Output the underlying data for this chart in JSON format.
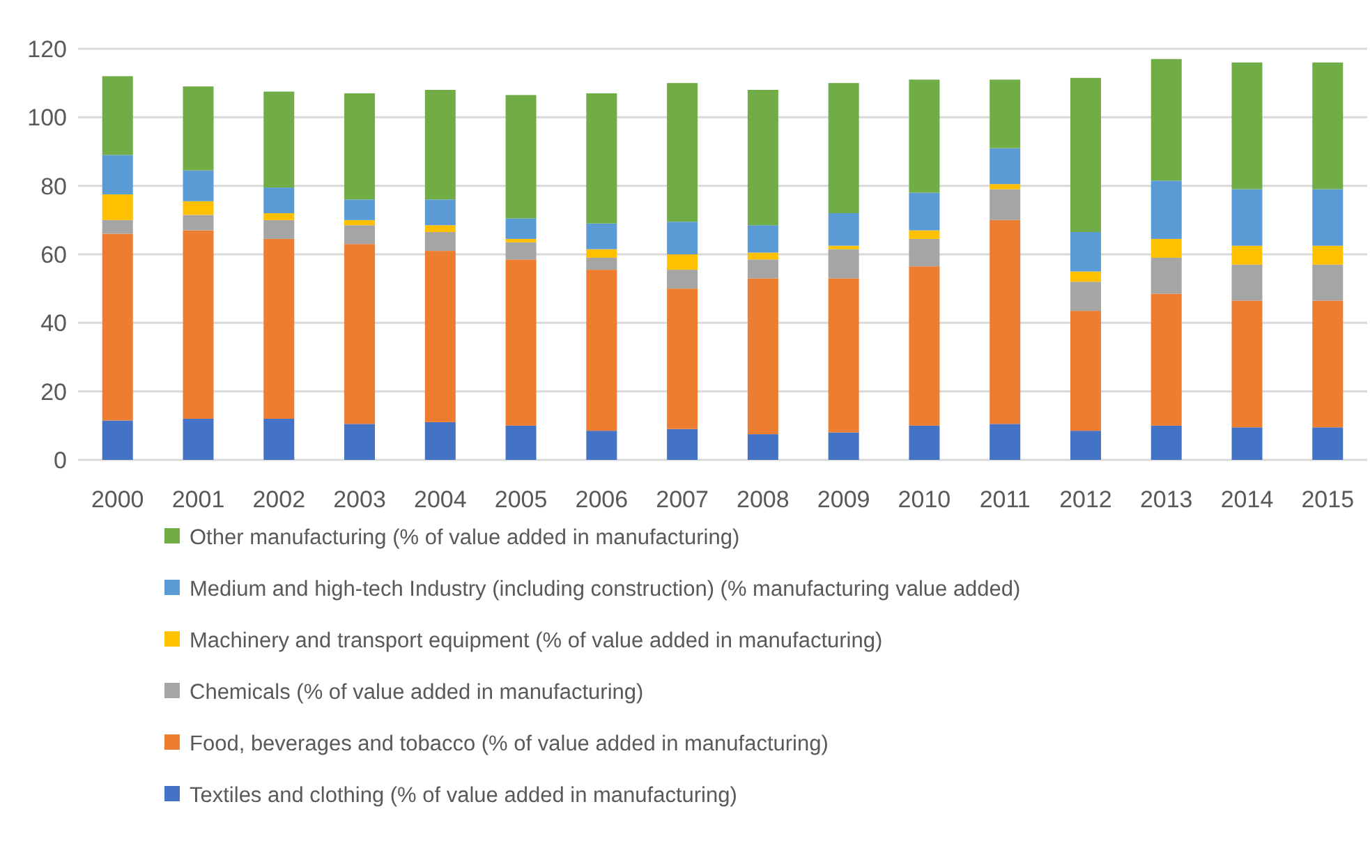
{
  "chart_data": {
    "type": "bar",
    "stacked": true,
    "categories": [
      "2000",
      "2001",
      "2002",
      "2003",
      "2004",
      "2005",
      "2006",
      "2007",
      "2008",
      "2009",
      "2010",
      "2011",
      "2012",
      "2013",
      "2014",
      "2015"
    ],
    "ylim": [
      0,
      120
    ],
    "yticks": [
      0,
      20,
      40,
      60,
      80,
      100,
      120
    ],
    "grid": "y",
    "legend": "bottom",
    "series": [
      {
        "name": "Textiles and clothing (% of value added in manufacturing)",
        "color": "#4472c4",
        "values": [
          11.5,
          12,
          12,
          10.5,
          11,
          10,
          8.5,
          9,
          7.5,
          8,
          10,
          10.5,
          8.5,
          10,
          9.5,
          9.5
        ]
      },
      {
        "name": "Food, beverages and tobacco (% of value added in manufacturing)",
        "color": "#ed7d31",
        "values": [
          54.5,
          55,
          52.5,
          52.5,
          50,
          48.5,
          47,
          41,
          45.5,
          45,
          46.5,
          59.5,
          35,
          38.5,
          37,
          37
        ]
      },
      {
        "name": "Chemicals (% of value added in manufacturing)",
        "color": "#a5a5a5",
        "values": [
          4,
          4.5,
          5.5,
          5.5,
          5.5,
          5,
          3.5,
          5.5,
          5.5,
          8.5,
          8,
          9,
          8.5,
          10.5,
          10.5,
          10.5
        ]
      },
      {
        "name": "Machinery and transport equipment (% of value added in manufacturing)",
        "color": "#ffc000",
        "values": [
          7.5,
          4,
          2,
          1.5,
          2,
          1,
          2.5,
          4.5,
          2,
          1,
          2.5,
          1.5,
          3,
          5.5,
          5.5,
          5.5
        ]
      },
      {
        "name": "Medium and high-tech Industry (including construction) (% manufacturing value added)",
        "color": "#5b9bd5",
        "values": [
          11.5,
          9,
          7.5,
          6,
          7.5,
          6,
          7.5,
          9.5,
          8,
          9.5,
          11,
          10.5,
          11.5,
          17,
          16.5,
          16.5
        ]
      },
      {
        "name": "Other manufacturing (% of value added in manufacturing)",
        "color": "#70ad47",
        "values": [
          23,
          24.5,
          28,
          31,
          32,
          36,
          38,
          40.5,
          39.5,
          38,
          33,
          20,
          45,
          35.5,
          37,
          37
        ]
      }
    ]
  }
}
